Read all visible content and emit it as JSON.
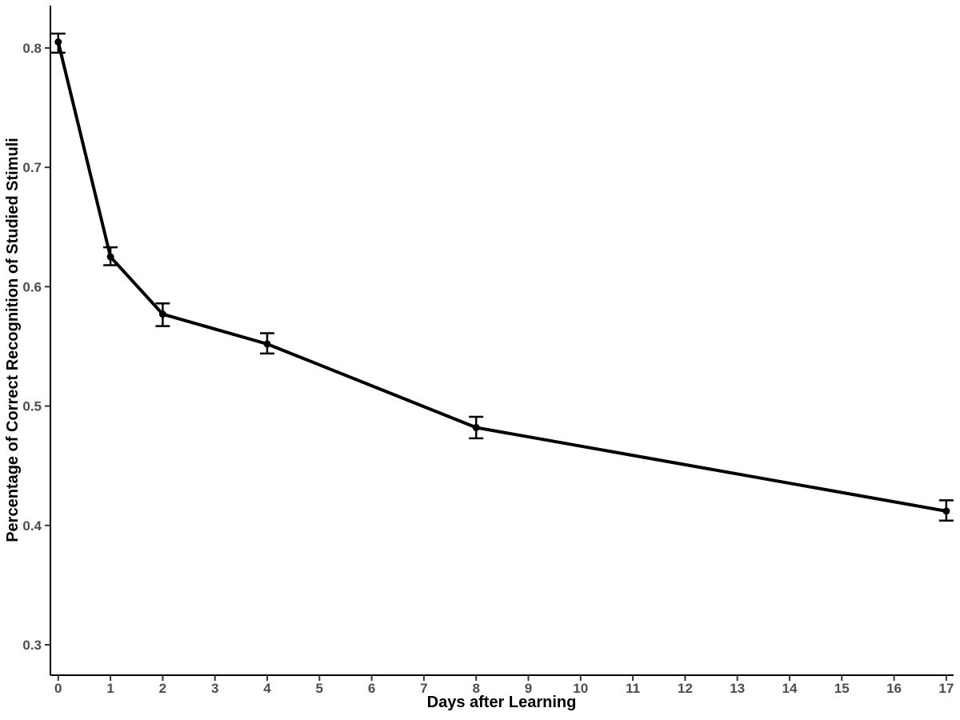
{
  "chart_data": {
    "type": "line",
    "title": "",
    "xlabel": "Days after Learning",
    "ylabel": "Percentage of Correct Recognition of Studied Stimuli",
    "x": [
      0,
      1,
      2,
      4,
      8,
      17
    ],
    "y": [
      0.805,
      0.625,
      0.577,
      0.552,
      0.482,
      0.412
    ],
    "error_low": [
      0.796,
      0.618,
      0.567,
      0.544,
      0.473,
      0.404
    ],
    "error_high": [
      0.812,
      0.633,
      0.586,
      0.561,
      0.491,
      0.421
    ],
    "series_name": "correct-recognition",
    "x_ticks": [
      0,
      1,
      2,
      3,
      4,
      5,
      6,
      7,
      8,
      9,
      10,
      11,
      12,
      13,
      14,
      15,
      16,
      17
    ],
    "x_tick_labels": [
      "0",
      "1",
      "2",
      "3",
      "4",
      "5",
      "6",
      "7",
      "8",
      "9",
      "10",
      "11",
      "12",
      "13",
      "14",
      "15",
      "16",
      "17"
    ],
    "y_ticks": [
      0.3,
      0.4,
      0.5,
      0.6,
      0.7,
      0.8
    ],
    "y_tick_labels": [
      "0.3",
      "0.4",
      "0.5",
      "0.6",
      "0.7",
      "0.8"
    ],
    "xlim": [
      -0.15,
      17.14
    ],
    "ylim": [
      0.2745,
      0.8355
    ],
    "grid": false,
    "legend": "none",
    "colors": {
      "series": "#000000",
      "axis": "#000000",
      "tick": "#333333",
      "tick_label": "#4d4d4d",
      "axis_title": "#000000",
      "background": "#ffffff"
    }
  }
}
